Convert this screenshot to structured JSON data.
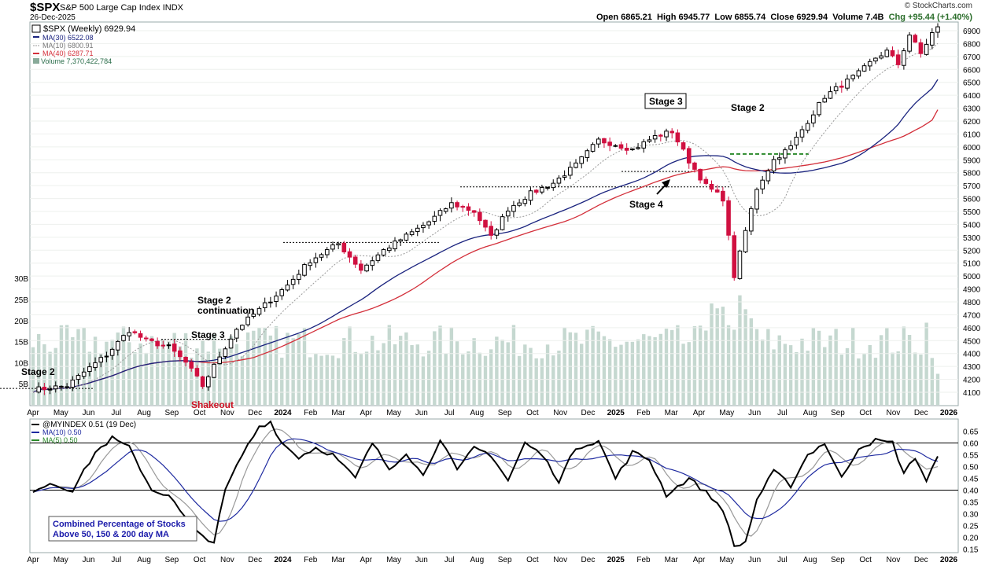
{
  "header": {
    "symbol": "$SPX",
    "name": "S&P 500 Large Cap Index",
    "exchange": "INDX",
    "date": "26-Dec-2025",
    "copyright": "© StockCharts.com",
    "open": "Open 6865.21",
    "high": "High 6945.77",
    "low": "Low 6855.74",
    "close": "Close 6929.94",
    "volume": "Volume 7.4B",
    "change": "Chg +95.44 (+1.40%)"
  },
  "legend_top": {
    "title": "$SPX (Weekly) 6929.94",
    "ma30": "MA(30) 6522.08",
    "ma10": "MA(10) 6800.91",
    "ma40": "MA(40) 6287.71",
    "volume": "Volume 7,370,422,784"
  },
  "legend_bottom": {
    "title": "@MYINDEX 0.51 (19 Dec)",
    "ma10": "MA(10) 0.50",
    "ma5": "MA(5) 0.50"
  },
  "annotations": {
    "stage2_a": "Stage 2",
    "stage3_a": "Stage 3",
    "stage2_cont_1": "Stage 2",
    "stage2_cont_2": "continuation",
    "shakeout": "Shakeout",
    "stage3_b": "Stage 3",
    "stage4": "Stage 4",
    "stage2_b": "Stage 2",
    "combined_1": "Combined Percentage of Stocks",
    "combined_2": "Above 50, 150 & 200 day MA"
  },
  "colors": {
    "up": "#000000",
    "down": "#d01040",
    "ma30": "#1a237e",
    "ma10": "#999999",
    "ma40": "#d32f3a",
    "volume": "#c5d8d0",
    "ind": "#000000",
    "ind_ma10": "#1e2aa0",
    "ind_ma5": "#999999",
    "note_box": "#1a1aaa",
    "shakeout": "#cc1122",
    "guide_green": "#2b8a2b"
  },
  "chart_data": [
    {
      "type": "candlestick",
      "title": "$SPX (Weekly) 6929.94",
      "price_ticks": [
        4100,
        4200,
        4300,
        4400,
        4500,
        4600,
        4700,
        4800,
        4900,
        5000,
        5100,
        5200,
        5300,
        5400,
        5500,
        5600,
        5700,
        5800,
        5900,
        6000,
        6100,
        6200,
        6300,
        6400,
        6500,
        6600,
        6700,
        6800,
        6900
      ],
      "volume_ticks": [
        "5B",
        "10B",
        "15B",
        "20B",
        "25B",
        "30B"
      ],
      "x_labels": [
        "Apr",
        "May",
        "Jun",
        "Jul",
        "Aug",
        "Sep",
        "Oct",
        "Nov",
        "Dec",
        "2024",
        "Feb",
        "Mar",
        "Apr",
        "May",
        "Jun",
        "Jul",
        "Aug",
        "Sep",
        "Oct",
        "Nov",
        "Dec",
        "2025",
        "Feb",
        "Mar",
        "Apr",
        "May",
        "Jun",
        "Jul",
        "Aug",
        "Sep",
        "Oct",
        "Nov",
        "Dec",
        "2026"
      ],
      "close_anchors": [
        [
          0,
          4120
        ],
        [
          6,
          4150
        ],
        [
          10,
          4290
        ],
        [
          13,
          4390
        ],
        [
          17,
          4580
        ],
        [
          20,
          4500
        ],
        [
          24,
          4450
        ],
        [
          27,
          4330
        ],
        [
          30,
          4150
        ],
        [
          33,
          4380
        ],
        [
          36,
          4590
        ],
        [
          40,
          4740
        ],
        [
          45,
          4930
        ],
        [
          49,
          5120
        ],
        [
          54,
          5250
        ],
        [
          58,
          5050
        ],
        [
          62,
          5200
        ],
        [
          66,
          5310
        ],
        [
          70,
          5420
        ],
        [
          74,
          5560
        ],
        [
          78,
          5500
        ],
        [
          81,
          5300
        ],
        [
          84,
          5520
        ],
        [
          88,
          5640
        ],
        [
          92,
          5720
        ],
        [
          96,
          5860
        ],
        [
          100,
          6050
        ],
        [
          103,
          6020
        ],
        [
          106,
          5980
        ],
        [
          110,
          6080
        ],
        [
          113,
          6120
        ],
        [
          116,
          5890
        ],
        [
          119,
          5700
        ],
        [
          122,
          5600
        ],
        [
          124,
          5000
        ],
        [
          126,
          5350
        ],
        [
          128,
          5680
        ],
        [
          131,
          5900
        ],
        [
          134,
          6000
        ],
        [
          137,
          6200
        ],
        [
          140,
          6390
        ],
        [
          143,
          6480
        ],
        [
          146,
          6570
        ],
        [
          149,
          6690
        ],
        [
          151,
          6740
        ],
        [
          153,
          6640
        ],
        [
          155,
          6870
        ],
        [
          157,
          6720
        ],
        [
          159,
          6880
        ],
        [
          160,
          6930
        ]
      ],
      "ma30_end": 6522.08,
      "ma10_end": 6800.91,
      "ma40_end": 6287.71,
      "volume_last": "7,370,422,784"
    },
    {
      "type": "line",
      "title": "@MYINDEX 0.51 (19 Dec)",
      "y_ticks": [
        0.15,
        0.2,
        0.25,
        0.3,
        0.35,
        0.4,
        0.45,
        0.5,
        0.55,
        0.6,
        0.65
      ],
      "ylim": [
        0.12,
        0.68
      ],
      "reference_lines": [
        0.6,
        0.4
      ],
      "x_labels": [
        "Apr",
        "May",
        "Jun",
        "Jul",
        "Aug",
        "Sep",
        "Oct",
        "Nov",
        "Dec",
        "2024",
        "Feb",
        "Mar",
        "Apr",
        "May",
        "Jun",
        "Jul",
        "Aug",
        "Sep",
        "Oct",
        "Nov",
        "Dec",
        "2025",
        "Feb",
        "Mar",
        "Apr",
        "May",
        "Jun",
        "Jul",
        "Aug",
        "Sep",
        "Oct",
        "Nov",
        "Dec",
        "2026"
      ],
      "anchors": [
        [
          0,
          0.4
        ],
        [
          3,
          0.43
        ],
        [
          7,
          0.4
        ],
        [
          11,
          0.56
        ],
        [
          14,
          0.62
        ],
        [
          17,
          0.58
        ],
        [
          21,
          0.4
        ],
        [
          24,
          0.38
        ],
        [
          26,
          0.31
        ],
        [
          29,
          0.22
        ],
        [
          32,
          0.18
        ],
        [
          34,
          0.4
        ],
        [
          37,
          0.55
        ],
        [
          40,
          0.67
        ],
        [
          42,
          0.69
        ],
        [
          44,
          0.6
        ],
        [
          47,
          0.54
        ],
        [
          50,
          0.58
        ],
        [
          53,
          0.55
        ],
        [
          57,
          0.45
        ],
        [
          60,
          0.6
        ],
        [
          63,
          0.49
        ],
        [
          66,
          0.56
        ],
        [
          69,
          0.46
        ],
        [
          72,
          0.62
        ],
        [
          75,
          0.48
        ],
        [
          78,
          0.58
        ],
        [
          81,
          0.55
        ],
        [
          84,
          0.44
        ],
        [
          87,
          0.6
        ],
        [
          90,
          0.55
        ],
        [
          93,
          0.44
        ],
        [
          96,
          0.58
        ],
        [
          100,
          0.61
        ],
        [
          103,
          0.45
        ],
        [
          106,
          0.56
        ],
        [
          109,
          0.53
        ],
        [
          112,
          0.38
        ],
        [
          116,
          0.45
        ],
        [
          119,
          0.39
        ],
        [
          122,
          0.32
        ],
        [
          124,
          0.16
        ],
        [
          126,
          0.18
        ],
        [
          128,
          0.36
        ],
        [
          131,
          0.48
        ],
        [
          134,
          0.42
        ],
        [
          137,
          0.55
        ],
        [
          140,
          0.6
        ],
        [
          143,
          0.45
        ],
        [
          146,
          0.58
        ],
        [
          149,
          0.61
        ],
        [
          152,
          0.6
        ],
        [
          154,
          0.47
        ],
        [
          156,
          0.54
        ],
        [
          158,
          0.44
        ],
        [
          160,
          0.54
        ],
        [
          162,
          0.5
        ]
      ]
    }
  ]
}
